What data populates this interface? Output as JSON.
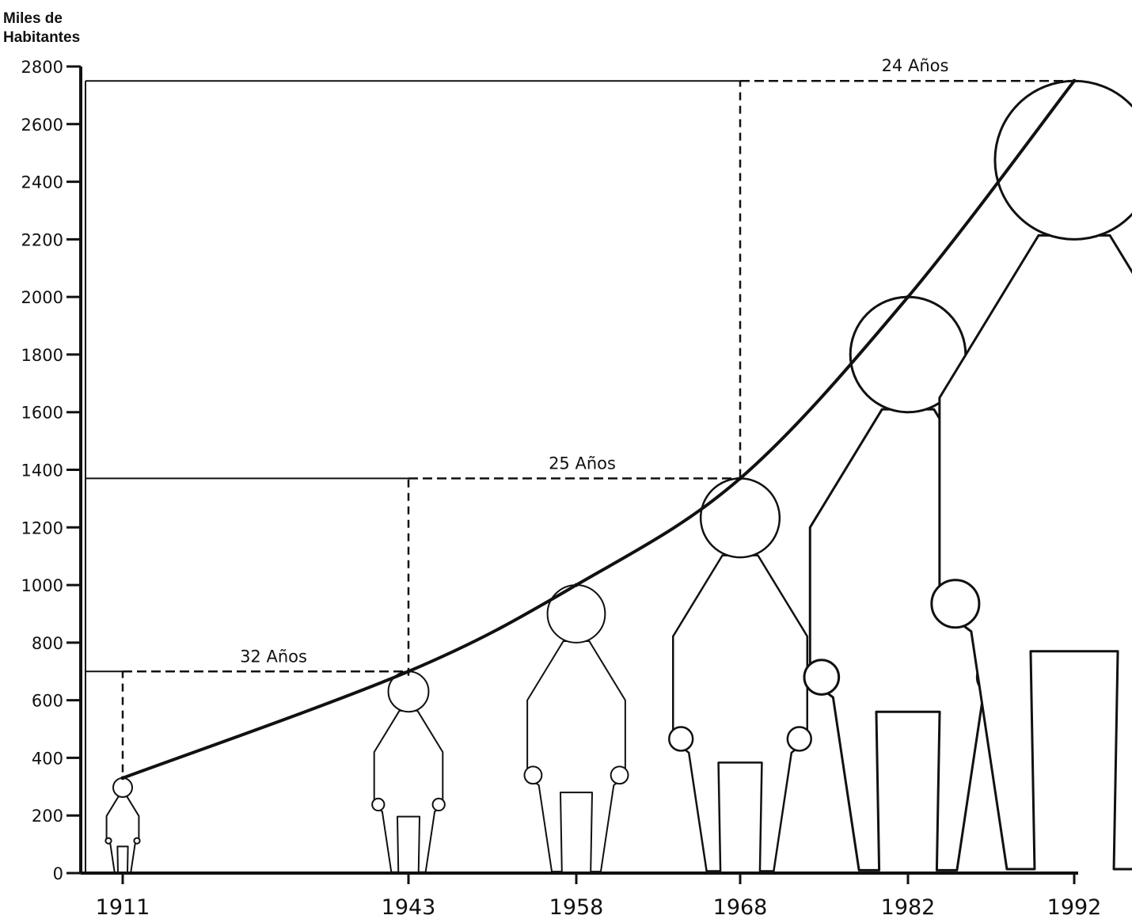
{
  "chart_data": {
    "type": "line",
    "ylabel_line1": "Miles de",
    "ylabel_line2": "Habitantes",
    "xlabel": "",
    "title": "",
    "ylim": [
      0,
      2800
    ],
    "y_ticks": [
      "0",
      "200",
      "400",
      "600",
      "800",
      "1000",
      "1200",
      "1400",
      "1600",
      "1800",
      "2000",
      "2200",
      "2400",
      "2600",
      "2800"
    ],
    "x_ticks": [
      "1911",
      "1943",
      "1958",
      "1968",
      "1982",
      "1992"
    ],
    "series": [
      {
        "x": [
          1911,
          1943,
          1958,
          1968,
          1982,
          1992
        ],
        "y": [
          330,
          700,
          1000,
          1370,
          2000,
          2750
        ]
      }
    ],
    "annotations": [
      {
        "text": "32  Años",
        "from_year": 1911,
        "to_year": 1943,
        "level": 700
      },
      {
        "text": "25  Años",
        "from_year": 1943,
        "to_year": 1968,
        "level": 1370
      },
      {
        "text": "24  Años",
        "from_year": 1968,
        "to_year": 1992,
        "level": 2750
      }
    ],
    "grid": false,
    "legend": "none",
    "line_color": "#111111"
  }
}
